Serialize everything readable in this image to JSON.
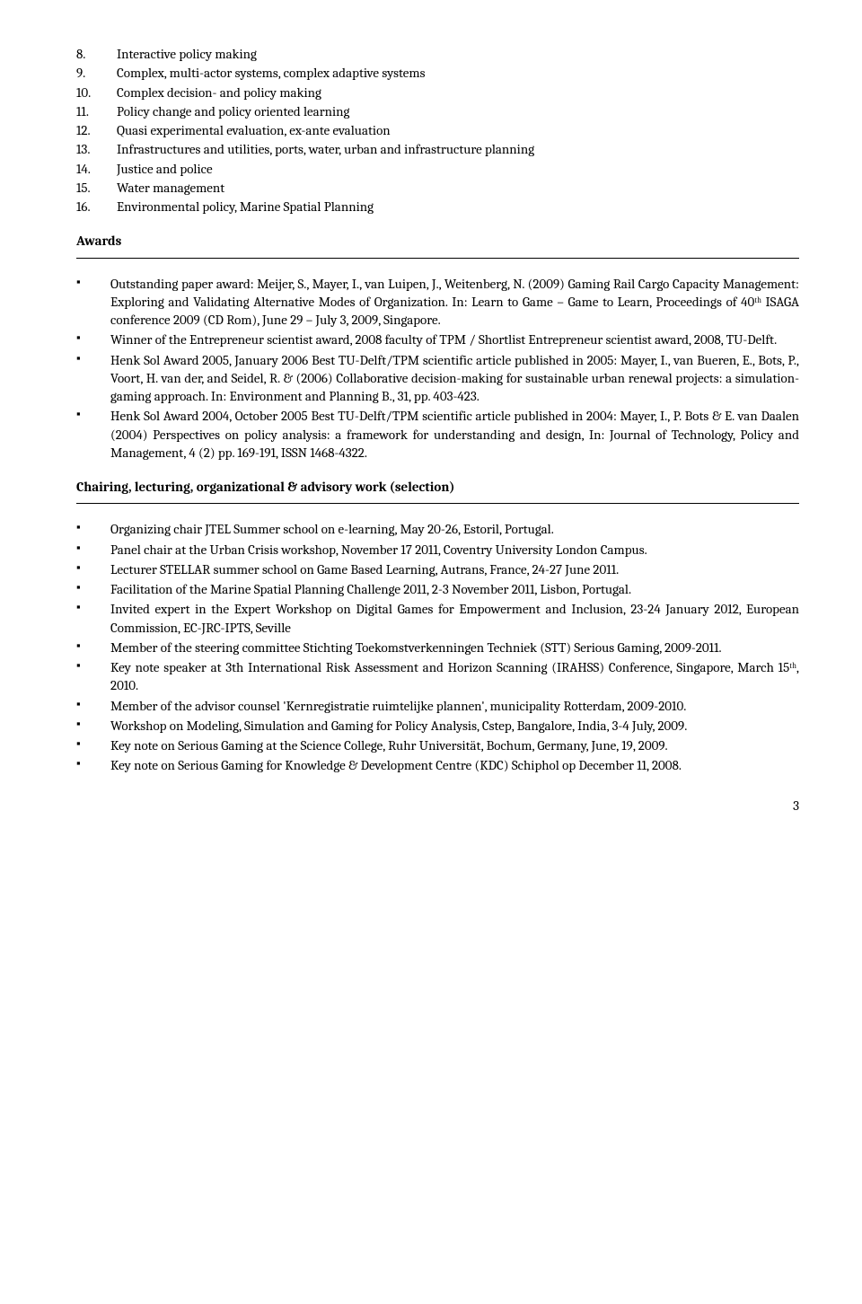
{
  "topics": [
    {
      "n": "8.",
      "t": "Interactive policy making"
    },
    {
      "n": "9.",
      "t": "Complex, multi-actor systems, complex adaptive systems"
    },
    {
      "n": "10.",
      "t": "Complex decision- and policy making"
    },
    {
      "n": "11.",
      "t": "Policy change and policy oriented learning"
    },
    {
      "n": "12.",
      "t": "Quasi experimental evaluation, ex-ante evaluation"
    },
    {
      "n": "13.",
      "t": "Infrastructures and utilities, ports, water, urban and infrastructure planning"
    },
    {
      "n": "14.",
      "t": "Justice and police"
    },
    {
      "n": "15.",
      "t": "Water management"
    },
    {
      "n": "16.",
      "t": "Environmental policy, Marine Spatial Planning"
    }
  ],
  "awards_heading": "Awards",
  "awards": [
    "Outstanding paper award: Meijer, S., Mayer, I., van Luipen, J., Weitenberg, N. (2009) Gaming Rail Cargo Capacity Management: Exploring and Validating Alternative Modes of Organization. In: Learn to Game – Game to Learn, Proceedings of 40ᵗʰ ISAGA conference 2009 (CD Rom), June 29 – July 3, 2009, Singapore.",
    "Winner of the Entrepreneur scientist award, 2008 faculty of TPM / Shortlist Entrepreneur scientist award, 2008, TU-Delft.",
    "Henk Sol Award 2005, January 2006 Best TU-Delft/TPM scientific article published in 2005: Mayer, I., van Bueren, E., Bots, P., Voort, H. van der, and Seidel, R. & (2006) Collaborative decision-making for sustainable urban renewal projects: a simulation-gaming approach. In: Environment and Planning B., 31, pp. 403-423.",
    "Henk Sol Award 2004, October 2005 Best TU-Delft/TPM scientific article published in 2004: Mayer, I., P. Bots & E. van Daalen (2004) Perspectives on policy analysis: a framework for understanding and design, In: Journal of Technology, Policy and Management, 4 (2) pp. 169-191, ISSN 1468-4322."
  ],
  "chairing_heading": "Chairing, lecturing, organizational & advisory work (selection)",
  "chairing": [
    "Organizing chair JTEL Summer school on e-learning, May 20-26, Estoril, Portugal.",
    "Panel chair at the Urban Crisis workshop, November 17 2011, Coventry University London Campus.",
    "Lecturer STELLAR summer school on Game Based Learning, Autrans, France, 24-27 June 2011.",
    "Facilitation of the Marine Spatial Planning Challenge 2011, 2-3 November 2011, Lisbon, Portugal.",
    "Invited expert in the Expert Workshop on Digital Games for Empowerment and Inclusion, 23-24 January 2012, European Commission, EC-JRC-IPTS, Seville",
    "Member of the steering committee Stichting Toekomstverkenningen Techniek (STT) Serious Gaming, 2009-2011.",
    "Key note speaker at 3th International Risk Assessment and Horizon Scanning (IRAHSS) Conference, Singapore, March 15ᵗʰ, 2010.",
    "Member of the advisor counsel 'Kernregistratie ruimtelijke plannen', municipality Rotterdam, 2009-2010.",
    "Workshop on Modeling, Simulation and Gaming for Policy Analysis, Cstep, Bangalore, India, 3-4 July, 2009.",
    "Key note on Serious Gaming at the Science College, Ruhr Universität, Bochum, Germany, June, 19, 2009.",
    "Key note on Serious Gaming for Knowledge & Development Centre (KDC) Schiphol op December 11, 2008."
  ],
  "page_number": "3"
}
